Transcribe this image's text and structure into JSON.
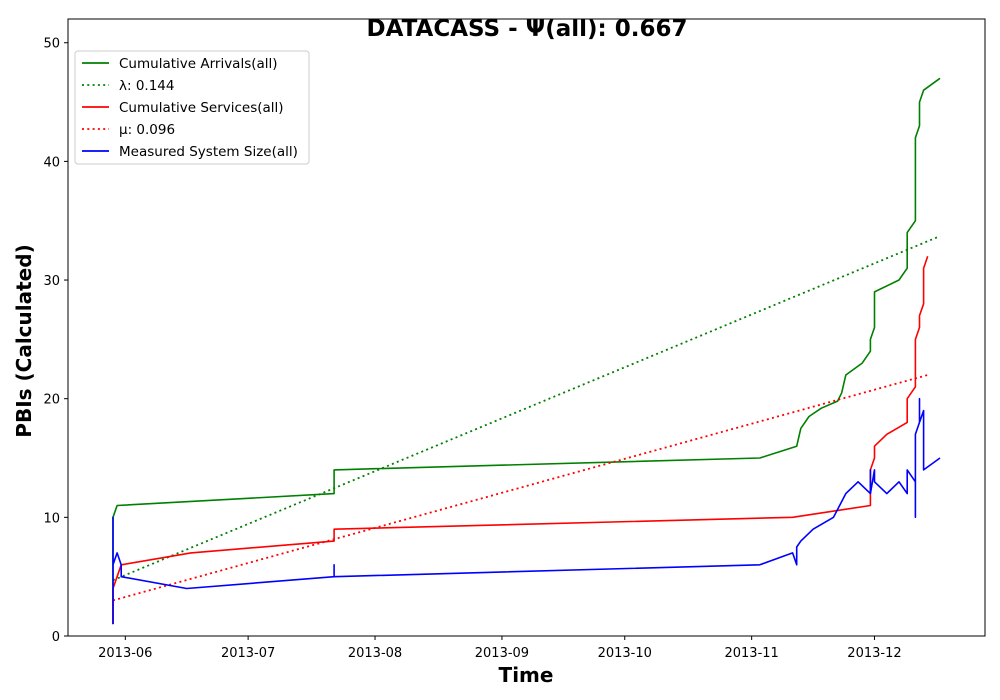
{
  "chart_data": {
    "type": "line",
    "title": "DATACASS -  Ψ(all): 0.667",
    "xlabel": "Time",
    "ylabel": "PBIs (Calculated)",
    "xlim": [
      "2013-05-18",
      "2013-12-28"
    ],
    "ylim": [
      0,
      52
    ],
    "x_ticks": [
      "2013-06",
      "2013-07",
      "2013-08",
      "2013-09",
      "2013-10",
      "2013-11",
      "2013-12"
    ],
    "y_ticks": [
      0,
      10,
      20,
      30,
      40,
      50
    ],
    "grid": false,
    "legend_position": "top-left",
    "series": [
      {
        "name": "Cumulative Arrivals(all)",
        "color": "#008000",
        "style": "solid",
        "points": [
          [
            "2013-05-29",
            1
          ],
          [
            "2013-05-29",
            10
          ],
          [
            "2013-05-30",
            11
          ],
          [
            "2013-07-22",
            12
          ],
          [
            "2013-07-22",
            14
          ],
          [
            "2013-08-01",
            14.1
          ],
          [
            "2013-11-03",
            15
          ],
          [
            "2013-11-12",
            16
          ],
          [
            "2013-11-13",
            17.5
          ],
          [
            "2013-11-15",
            18.5
          ],
          [
            "2013-11-18",
            19.2
          ],
          [
            "2013-11-22",
            19.8
          ],
          [
            "2013-11-23",
            20.5
          ],
          [
            "2013-11-24",
            22
          ],
          [
            "2013-11-28",
            23
          ],
          [
            "2013-11-30",
            24
          ],
          [
            "2013-11-30",
            25
          ],
          [
            "2013-12-01",
            26
          ],
          [
            "2013-12-01",
            29
          ],
          [
            "2013-12-07",
            30
          ],
          [
            "2013-12-09",
            31
          ],
          [
            "2013-12-09",
            34
          ],
          [
            "2013-12-11",
            35
          ],
          [
            "2013-12-11",
            42
          ],
          [
            "2013-12-12",
            43
          ],
          [
            "2013-12-12",
            45
          ],
          [
            "2013-12-13",
            46
          ],
          [
            "2013-12-17",
            47
          ]
        ]
      },
      {
        "name": "λ: 0.144",
        "color": "#008000",
        "style": "dotted",
        "points": [
          [
            "2013-05-29",
            4.7
          ],
          [
            "2013-12-17",
            33.7
          ]
        ]
      },
      {
        "name": "Cumulative Services(all)",
        "color": "#ff0000",
        "style": "solid",
        "points": [
          [
            "2013-05-29",
            1
          ],
          [
            "2013-05-29",
            4
          ],
          [
            "2013-05-30",
            5
          ],
          [
            "2013-05-31",
            6
          ],
          [
            "2013-06-17",
            7
          ],
          [
            "2013-07-22",
            8
          ],
          [
            "2013-07-22",
            9
          ],
          [
            "2013-11-11",
            10
          ],
          [
            "2013-11-30",
            11
          ],
          [
            "2013-11-30",
            14
          ],
          [
            "2013-12-01",
            15
          ],
          [
            "2013-12-01",
            16
          ],
          [
            "2013-12-04",
            17
          ],
          [
            "2013-12-09",
            18
          ],
          [
            "2013-12-09",
            20
          ],
          [
            "2013-12-11",
            21
          ],
          [
            "2013-12-11",
            25
          ],
          [
            "2013-12-12",
            26
          ],
          [
            "2013-12-12",
            27
          ],
          [
            "2013-12-13",
            28
          ],
          [
            "2013-12-13",
            31
          ],
          [
            "2013-12-14",
            32
          ]
        ]
      },
      {
        "name": "μ: 0.096",
        "color": "#ff0000",
        "style": "dotted",
        "points": [
          [
            "2013-05-29",
            3
          ],
          [
            "2013-12-14",
            22
          ]
        ]
      },
      {
        "name": "Measured System Size(all)",
        "color": "#0000ff",
        "style": "solid",
        "points": [
          [
            "2013-05-29",
            1
          ],
          [
            "2013-05-29",
            10
          ],
          [
            "2013-05-29",
            6
          ],
          [
            "2013-05-30",
            7
          ],
          [
            "2013-05-31",
            6
          ],
          [
            "2013-05-31",
            5
          ],
          [
            "2013-06-16",
            4
          ],
          [
            "2013-07-22",
            5
          ],
          [
            "2013-07-22",
            6
          ],
          [
            "2013-07-22",
            5
          ],
          [
            "2013-11-03",
            6
          ],
          [
            "2013-11-11",
            7
          ],
          [
            "2013-11-12",
            6
          ],
          [
            "2013-11-12",
            7.5
          ],
          [
            "2013-11-13",
            8
          ],
          [
            "2013-11-16",
            9
          ],
          [
            "2013-11-21",
            10
          ],
          [
            "2013-11-24",
            12
          ],
          [
            "2013-11-27",
            13
          ],
          [
            "2013-11-30",
            12
          ],
          [
            "2013-11-30",
            14
          ],
          [
            "2013-11-30",
            12
          ],
          [
            "2013-12-01",
            14
          ],
          [
            "2013-12-01",
            13
          ],
          [
            "2013-12-04",
            12
          ],
          [
            "2013-12-07",
            13
          ],
          [
            "2013-12-09",
            12
          ],
          [
            "2013-12-09",
            14
          ],
          [
            "2013-12-11",
            13
          ],
          [
            "2013-12-11",
            10
          ],
          [
            "2013-12-11",
            17
          ],
          [
            "2013-12-12",
            18
          ],
          [
            "2013-12-12",
            20
          ],
          [
            "2013-12-12",
            18
          ],
          [
            "2013-12-13",
            19
          ],
          [
            "2013-12-13",
            14
          ],
          [
            "2013-12-17",
            15
          ]
        ]
      }
    ]
  }
}
